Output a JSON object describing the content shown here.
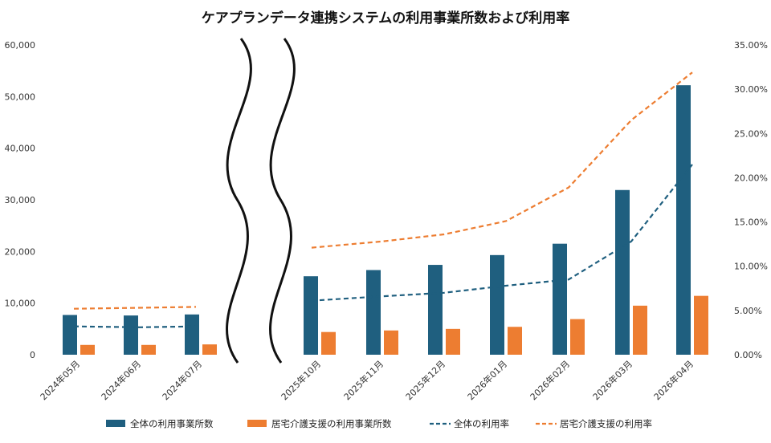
{
  "chart_data": {
    "type": "bar",
    "title": "ケアプランデータ連携システムの利用事業所数および利用率",
    "categories": [
      "2024年05月",
      "2024年06月",
      "2024年07月",
      "2025年10月",
      "2025年11月",
      "2025年12月",
      "2026年01月",
      "2026年02月",
      "2026年03月",
      "2026年04月"
    ],
    "axis_break_after": "2024年07月",
    "y_left": {
      "ticks": [
        "0",
        "10,000",
        "20,000",
        "30,000",
        "40,000",
        "50,000",
        "60,000"
      ],
      "ylim": [
        0,
        60000
      ]
    },
    "y_right": {
      "ticks": [
        "0.00%",
        "5.00%",
        "10.00%",
        "15.00%",
        "20.00%",
        "25.00%",
        "30.00%",
        "35.00%"
      ],
      "ylim": [
        0,
        35
      ]
    },
    "series": [
      {
        "name": "全体の利用事業所数",
        "kind": "bar",
        "axis": "left",
        "color": "#1f5f7f",
        "values": [
          7700,
          7600,
          7800,
          15200,
          16400,
          17400,
          19300,
          21500,
          31900,
          52200
        ]
      },
      {
        "name": "居宅介護支援の利用事業所数",
        "kind": "bar",
        "axis": "left",
        "color": "#ed7d31",
        "values": [
          1900,
          1900,
          2000,
          4400,
          4700,
          5000,
          5400,
          6900,
          9500,
          11400
        ]
      },
      {
        "name": "全体の利用率",
        "kind": "line",
        "style": "dashed",
        "axis": "right",
        "color": "#1f5f7f",
        "values": [
          3.2,
          3.1,
          3.2,
          6.1,
          6.6,
          7.0,
          7.8,
          8.5,
          12.8,
          21.5
        ]
      },
      {
        "name": "居宅介護支援の利用率",
        "kind": "line",
        "style": "dashed",
        "axis": "right",
        "color": "#ed7d31",
        "values": [
          5.2,
          5.3,
          5.4,
          12.1,
          12.8,
          13.6,
          15.1,
          18.9,
          26.5,
          31.9
        ]
      }
    ],
    "grid": false,
    "legend_position": "bottom"
  }
}
